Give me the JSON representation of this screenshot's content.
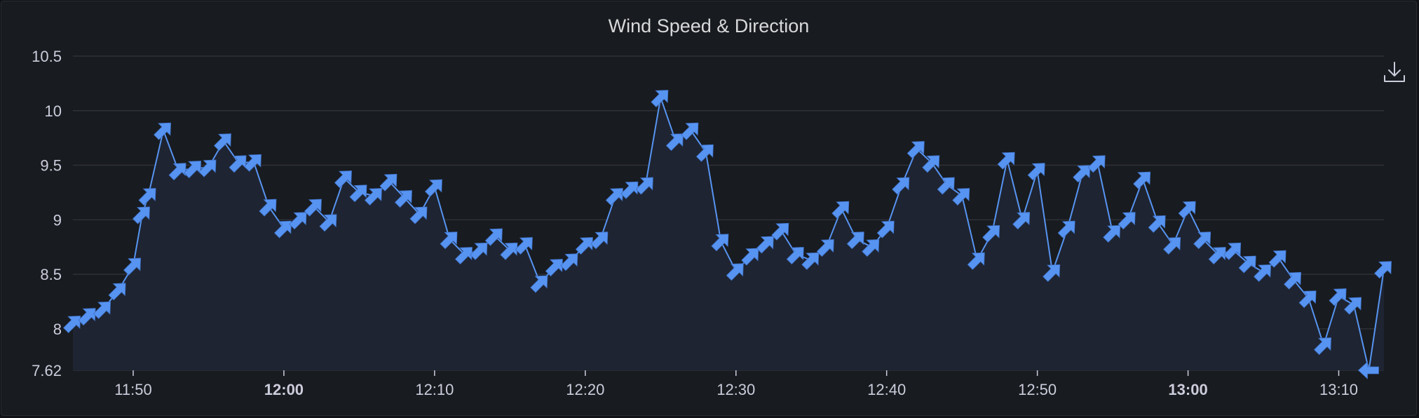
{
  "panel": {
    "download_icon": "download-icon"
  },
  "chart_data": {
    "type": "line",
    "title": "Wind Speed & Direction",
    "xlabel": "",
    "ylabel": "",
    "ylim": [
      7.62,
      10.5
    ],
    "xlim": [
      "11:46",
      "13:13"
    ],
    "y_ticks": [
      "10.5",
      "10",
      "9.5",
      "9",
      "8.5",
      "8",
      "7.62"
    ],
    "y_tick_values": [
      10.5,
      10,
      9.5,
      9,
      8.5,
      8,
      7.62
    ],
    "x_ticks": [
      {
        "label": "11:50",
        "time": "11:50",
        "bold": false
      },
      {
        "label": "12:00",
        "time": "12:00",
        "bold": true
      },
      {
        "label": "12:10",
        "time": "12:10",
        "bold": false
      },
      {
        "label": "12:20",
        "time": "12:20",
        "bold": false
      },
      {
        "label": "12:30",
        "time": "12:30",
        "bold": false
      },
      {
        "label": "12:40",
        "time": "12:40",
        "bold": false
      },
      {
        "label": "12:50",
        "time": "12:50",
        "bold": false
      },
      {
        "label": "13:00",
        "time": "13:00",
        "bold": true
      },
      {
        "label": "13:10",
        "time": "13:10",
        "bold": false
      }
    ],
    "grid": true,
    "colors": {
      "line": "#5794f2",
      "fill": "#1f2533",
      "grid": "#2e3138",
      "text": "#ccccdc"
    },
    "markers": "arrows indicating wind direction",
    "series": [
      {
        "points": [
          [
            "11:46",
            8.05,
            45
          ],
          [
            "11:47",
            8.12,
            45
          ],
          [
            "11:48",
            8.18,
            45
          ],
          [
            "11:49",
            8.35,
            45
          ],
          [
            "11:50",
            8.58,
            45
          ],
          [
            "11:50.6",
            9.05,
            45
          ],
          [
            "11:51",
            9.22,
            45
          ],
          [
            "11:52",
            9.82,
            45
          ],
          [
            "11:53",
            9.45,
            45
          ],
          [
            "11:54",
            9.47,
            45
          ],
          [
            "11:55",
            9.48,
            45
          ],
          [
            "11:56",
            9.72,
            45
          ],
          [
            "11:57",
            9.52,
            45
          ],
          [
            "11:58",
            9.53,
            45
          ],
          [
            "11:59",
            9.12,
            45
          ],
          [
            "12:00",
            8.92,
            45
          ],
          [
            "12:01",
            9.0,
            45
          ],
          [
            "12:02",
            9.12,
            45
          ],
          [
            "12:03",
            8.98,
            45
          ],
          [
            "12:04",
            9.38,
            45
          ],
          [
            "12:05",
            9.25,
            45
          ],
          [
            "12:06",
            9.22,
            45
          ],
          [
            "12:07",
            9.35,
            45
          ],
          [
            "12:08",
            9.2,
            45
          ],
          [
            "12:09",
            9.05,
            45
          ],
          [
            "12:10",
            9.3,
            45
          ],
          [
            "12:11",
            8.82,
            45
          ],
          [
            "12:12",
            8.68,
            45
          ],
          [
            "12:13",
            8.72,
            45
          ],
          [
            "12:14",
            8.85,
            45
          ],
          [
            "12:15",
            8.72,
            45
          ],
          [
            "12:16",
            8.77,
            45
          ],
          [
            "12:17",
            8.42,
            45
          ],
          [
            "12:18",
            8.57,
            45
          ],
          [
            "12:19",
            8.62,
            45
          ],
          [
            "12:20",
            8.77,
            45
          ],
          [
            "12:21",
            8.82,
            45
          ],
          [
            "12:22",
            9.22,
            45
          ],
          [
            "12:23",
            9.28,
            45
          ],
          [
            "12:24",
            9.32,
            45
          ],
          [
            "12:25",
            10.12,
            45
          ],
          [
            "12:26",
            9.72,
            45
          ],
          [
            "12:27",
            9.82,
            45
          ],
          [
            "12:28",
            9.62,
            45
          ],
          [
            "12:29",
            8.8,
            45
          ],
          [
            "12:30",
            8.53,
            45
          ],
          [
            "12:31",
            8.67,
            45
          ],
          [
            "12:32",
            8.78,
            45
          ],
          [
            "12:33",
            8.9,
            45
          ],
          [
            "12:34",
            8.68,
            45
          ],
          [
            "12:35",
            8.63,
            45
          ],
          [
            "12:36",
            8.75,
            45
          ],
          [
            "12:37",
            9.1,
            45
          ],
          [
            "12:38",
            8.82,
            45
          ],
          [
            "12:39",
            8.75,
            45
          ],
          [
            "12:40",
            8.92,
            45
          ],
          [
            "12:41",
            9.32,
            45
          ],
          [
            "12:42",
            9.65,
            45
          ],
          [
            "12:43",
            9.52,
            45
          ],
          [
            "12:44",
            9.32,
            45
          ],
          [
            "12:45",
            9.22,
            45
          ],
          [
            "12:46",
            8.63,
            45
          ],
          [
            "12:47",
            8.88,
            45
          ],
          [
            "12:48",
            9.55,
            45
          ],
          [
            "12:49",
            9.0,
            45
          ],
          [
            "12:50",
            9.45,
            45
          ],
          [
            "12:51",
            8.52,
            45
          ],
          [
            "12:52",
            8.92,
            45
          ],
          [
            "12:53",
            9.43,
            45
          ],
          [
            "12:54",
            9.52,
            45
          ],
          [
            "12:55",
            8.88,
            45
          ],
          [
            "12:56",
            9.0,
            45
          ],
          [
            "12:57",
            9.37,
            45
          ],
          [
            "12:58",
            8.97,
            45
          ],
          [
            "12:59",
            8.77,
            45
          ],
          [
            "13:00",
            9.1,
            45
          ],
          [
            "13:01",
            8.82,
            45
          ],
          [
            "13:02",
            8.68,
            45
          ],
          [
            "13:03",
            8.72,
            45
          ],
          [
            "13:04",
            8.6,
            45
          ],
          [
            "13:05",
            8.52,
            45
          ],
          [
            "13:06",
            8.65,
            45
          ],
          [
            "13:07",
            8.45,
            45
          ],
          [
            "13:08",
            8.28,
            45
          ],
          [
            "13:09",
            7.85,
            45
          ],
          [
            "13:10",
            8.3,
            45
          ],
          [
            "13:11",
            8.22,
            45
          ],
          [
            "13:12",
            7.62,
            270
          ],
          [
            "13:13",
            8.55,
            45
          ]
        ]
      }
    ]
  }
}
